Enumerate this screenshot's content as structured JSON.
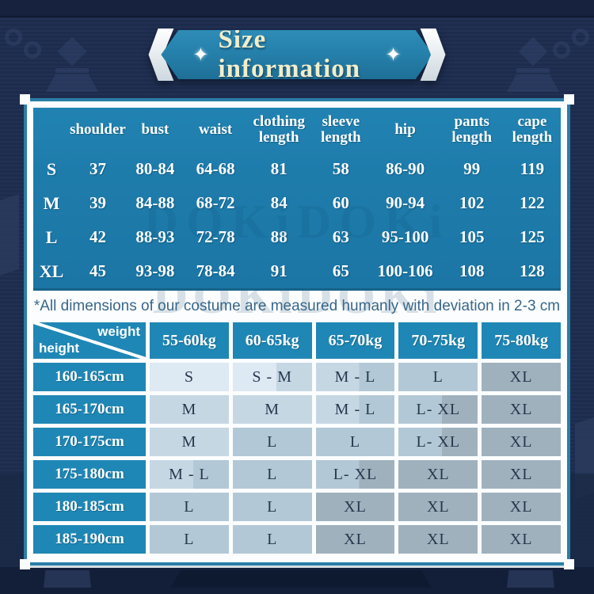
{
  "banner": {
    "title": "Size information",
    "sparkle": "✦",
    "teal": "#2581ab",
    "title_color": "#f2edc8"
  },
  "watermark": "DOKiDOKi",
  "size_table": {
    "columns": [
      "shoulder",
      "bust",
      "waist",
      "clothing length",
      "sleeve length",
      "hip",
      "pants length",
      "cape length"
    ],
    "rows": [
      {
        "size": "S",
        "values": [
          "37",
          "80-84",
          "64-68",
          "81",
          "58",
          "86-90",
          "99",
          "119"
        ]
      },
      {
        "size": "M",
        "values": [
          "39",
          "84-88",
          "68-72",
          "84",
          "60",
          "90-94",
          "102",
          "122"
        ]
      },
      {
        "size": "L",
        "values": [
          "42",
          "88-93",
          "72-78",
          "88",
          "63",
          "95-100",
          "105",
          "125"
        ]
      },
      {
        "size": "XL",
        "values": [
          "45",
          "93-98",
          "78-84",
          "91",
          "65",
          "100-106",
          "108",
          "128"
        ]
      }
    ],
    "table_color": "#1e7cab"
  },
  "note": "*All dimensions of our costume are measured humanly with deviation in 2-3 cm",
  "fit_table": {
    "corner": {
      "weight_label": "weight",
      "height_label": "height"
    },
    "weight_columns": [
      "55-60kg",
      "60-65kg",
      "65-70kg",
      "70-75kg",
      "75-80kg"
    ],
    "header_color": "#1f87b5",
    "palette": {
      "S": "#dde9f3",
      "M": "#c6d7e4",
      "L": "#b3c8d6",
      "XL": "#a0b1be"
    },
    "rows": [
      {
        "height": "160-165cm",
        "cells": [
          {
            "label": "S",
            "bg": "S"
          },
          {
            "label": "S - M",
            "bg": "S,M"
          },
          {
            "label": "M - L",
            "bg": "M,L"
          },
          {
            "label": "L",
            "bg": "L"
          },
          {
            "label": "XL",
            "bg": "XL"
          }
        ]
      },
      {
        "height": "165-170cm",
        "cells": [
          {
            "label": "M",
            "bg": "M"
          },
          {
            "label": "M",
            "bg": "M"
          },
          {
            "label": "M - L",
            "bg": "M,L"
          },
          {
            "label": "L- XL",
            "bg": "L,XL"
          },
          {
            "label": "XL",
            "bg": "XL"
          }
        ]
      },
      {
        "height": "170-175cm",
        "cells": [
          {
            "label": "M",
            "bg": "M"
          },
          {
            "label": "L",
            "bg": "L"
          },
          {
            "label": "L",
            "bg": "L"
          },
          {
            "label": "L- XL",
            "bg": "L,XL"
          },
          {
            "label": "XL",
            "bg": "XL"
          }
        ]
      },
      {
        "height": "175-180cm",
        "cells": [
          {
            "label": "M - L",
            "bg": "M,L"
          },
          {
            "label": "L",
            "bg": "L"
          },
          {
            "label": "L- XL",
            "bg": "L,XL"
          },
          {
            "label": "XL",
            "bg": "XL"
          },
          {
            "label": "XL",
            "bg": "XL"
          }
        ]
      },
      {
        "height": "180-185cm",
        "cells": [
          {
            "label": "L",
            "bg": "L"
          },
          {
            "label": "L",
            "bg": "L"
          },
          {
            "label": "XL",
            "bg": "XL"
          },
          {
            "label": "XL",
            "bg": "XL"
          },
          {
            "label": "XL",
            "bg": "XL"
          }
        ]
      },
      {
        "height": "185-190cm",
        "cells": [
          {
            "label": "L",
            "bg": "L"
          },
          {
            "label": "L",
            "bg": "L"
          },
          {
            "label": "XL",
            "bg": "XL"
          },
          {
            "label": "XL",
            "bg": "XL"
          },
          {
            "label": "XL",
            "bg": "XL"
          }
        ]
      }
    ]
  }
}
